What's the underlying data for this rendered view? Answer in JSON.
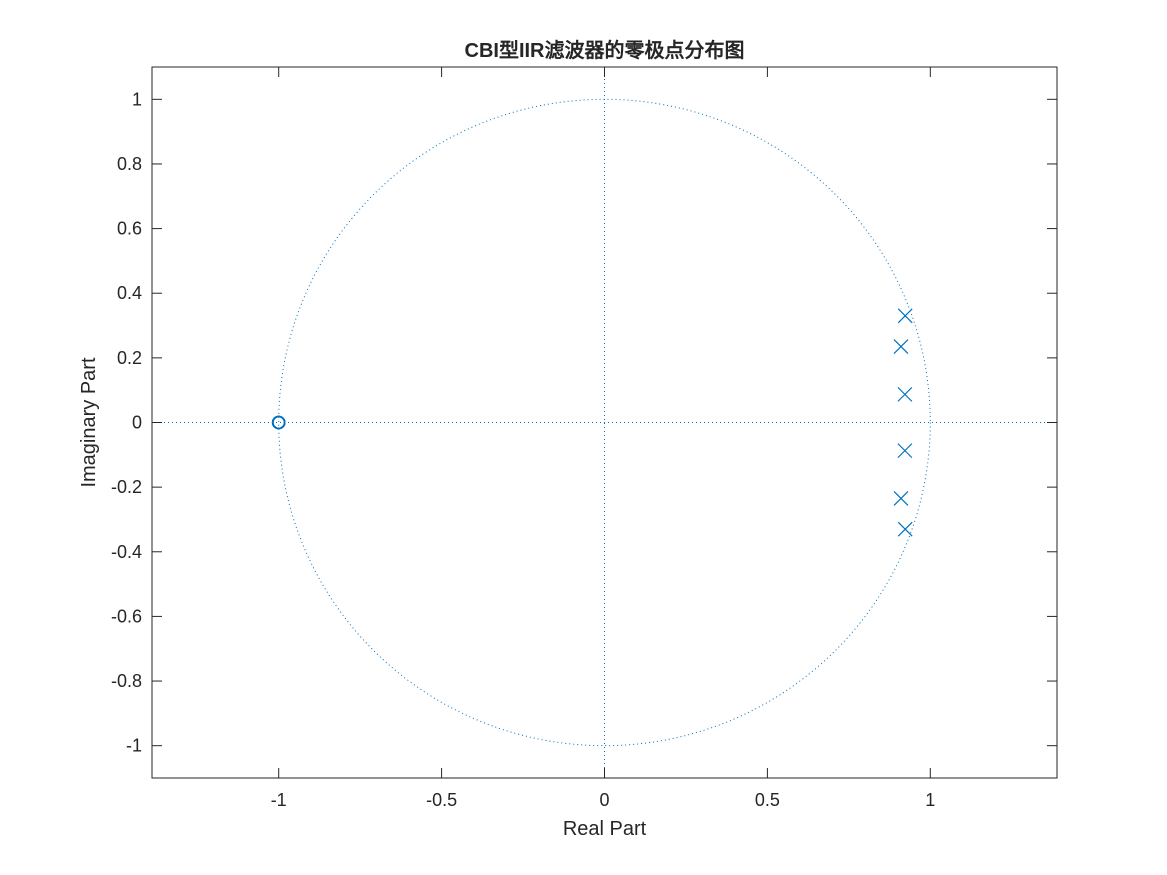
{
  "chart_data": {
    "type": "scatter",
    "title": "CBI型IIR滤波器的零极点分布图",
    "xlabel": "Real Part",
    "ylabel": "Imaginary Part",
    "xlim": [
      -1.3889,
      1.3889
    ],
    "ylim": [
      -1.1,
      1.1
    ],
    "xticks": [
      -1,
      -0.5,
      0,
      0.5,
      1
    ],
    "xtick_labels": [
      "-1",
      "-0.5",
      "0",
      "0.5",
      "1"
    ],
    "yticks": [
      -1,
      -0.8,
      -0.6,
      -0.4,
      -0.2,
      0,
      0.2,
      0.4,
      0.6,
      0.8,
      1
    ],
    "ytick_labels": [
      "-1",
      "-0.8",
      "-0.6",
      "-0.4",
      "-0.2",
      "0",
      "0.2",
      "0.4",
      "0.6",
      "0.8",
      "1"
    ],
    "grid": false,
    "box": true,
    "unit_circle": true,
    "color": "#0072BD",
    "axes_color": "#262626",
    "zeros": [
      {
        "x": -1,
        "y": 0
      },
      {
        "x": -1,
        "y": 0
      },
      {
        "x": -1,
        "y": 0
      },
      {
        "x": -1,
        "y": 0
      },
      {
        "x": -1,
        "y": 0
      },
      {
        "x": -1,
        "y": 0
      }
    ],
    "poles": [
      {
        "x": 0.923,
        "y": 0.33
      },
      {
        "x": 0.91,
        "y": 0.235
      },
      {
        "x": 0.922,
        "y": 0.087
      },
      {
        "x": 0.922,
        "y": -0.087
      },
      {
        "x": 0.91,
        "y": -0.235
      },
      {
        "x": 0.923,
        "y": -0.33
      }
    ]
  }
}
